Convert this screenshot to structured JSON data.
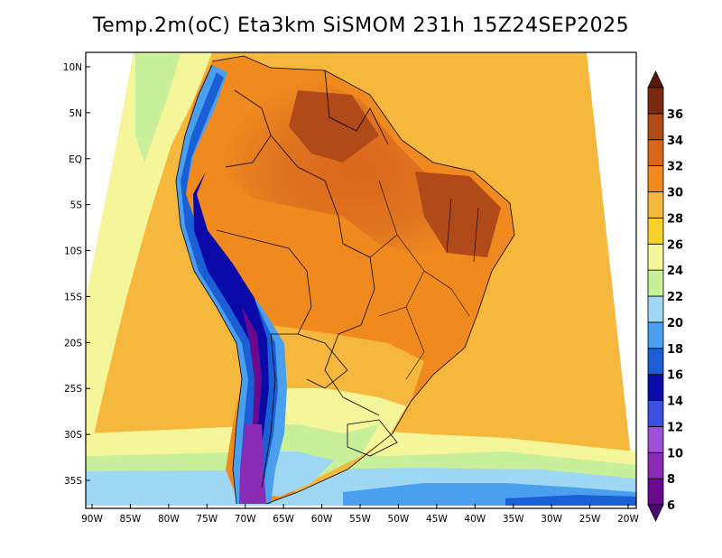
{
  "title": "Temp.2m(oC) Eta3km SiSMOM 231h 15Z24SEP2025",
  "map": {
    "lat_labels": [
      {
        "label": "10N",
        "lat": 10
      },
      {
        "label": "5N",
        "lat": 5
      },
      {
        "label": "EQ",
        "lat": 0
      },
      {
        "label": "5S",
        "lat": -5
      },
      {
        "label": "10S",
        "lat": -10
      },
      {
        "label": "15S",
        "lat": -15
      },
      {
        "label": "20S",
        "lat": -20
      },
      {
        "label": "25S",
        "lat": -25
      },
      {
        "label": "30S",
        "lat": -30
      },
      {
        "label": "35S",
        "lat": -35
      }
    ],
    "lon_labels": [
      {
        "label": "90W",
        "lon": -90
      },
      {
        "label": "85W",
        "lon": -85
      },
      {
        "label": "80W",
        "lon": -80
      },
      {
        "label": "75W",
        "lon": -75
      },
      {
        "label": "70W",
        "lon": -70
      },
      {
        "label": "65W",
        "lon": -65
      },
      {
        "label": "60W",
        "lon": -60
      },
      {
        "label": "55W",
        "lon": -55
      },
      {
        "label": "50W",
        "lon": -50
      },
      {
        "label": "45W",
        "lon": -45
      },
      {
        "label": "40W",
        "lon": -40
      },
      {
        "label": "35W",
        "lon": -35
      },
      {
        "label": "30W",
        "lon": -30
      },
      {
        "label": "25W",
        "lon": -25
      },
      {
        "label": "20W",
        "lon": -20
      }
    ]
  },
  "colorbar": {
    "units": "oC",
    "levels": [
      {
        "label": "6",
        "value": 6,
        "color": "#6a0a8f"
      },
      {
        "label": "8",
        "value": 8,
        "color": "#8a2bb5"
      },
      {
        "label": "10",
        "value": 10,
        "color": "#9e50d6"
      },
      {
        "label": "12",
        "value": 12,
        "color": "#3b4fe0"
      },
      {
        "label": "14",
        "value": 14,
        "color": "#0a0aa8"
      },
      {
        "label": "16",
        "value": 16,
        "color": "#1a5fd6"
      },
      {
        "label": "18",
        "value": 18,
        "color": "#4aa0ee"
      },
      {
        "label": "20",
        "value": 20,
        "color": "#9fd8f5"
      },
      {
        "label": "22",
        "value": 22,
        "color": "#c8f09a"
      },
      {
        "label": "24",
        "value": 24,
        "color": "#f5f59a"
      },
      {
        "label": "26",
        "value": 26,
        "color": "#f7d22a"
      },
      {
        "label": "28",
        "value": 28,
        "color": "#f5b83c"
      },
      {
        "label": "30",
        "value": 30,
        "color": "#f08a1e"
      },
      {
        "label": "32",
        "value": 32,
        "color": "#d9661a"
      },
      {
        "label": "34",
        "value": 34,
        "color": "#b04a18"
      },
      {
        "label": "36",
        "value": 36,
        "color": "#7a2a10"
      }
    ],
    "below_color": "#4a0a70",
    "above_color": "#5a1a0a"
  }
}
